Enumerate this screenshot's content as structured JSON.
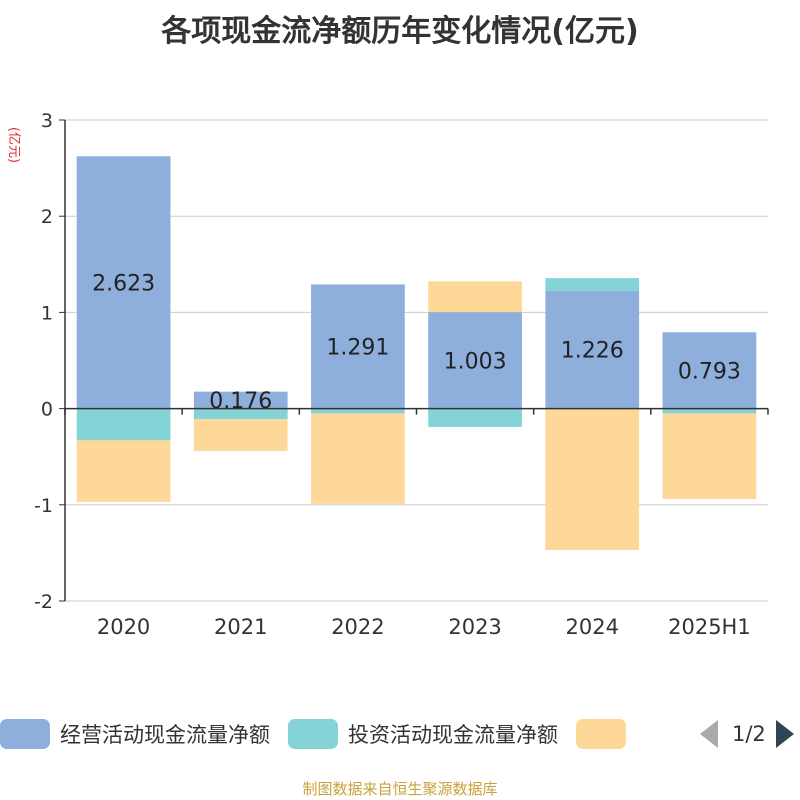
{
  "title": "各项现金流净额历年变化情况(亿元)",
  "footer": "制图数据来自恒生聚源数据库",
  "pager": {
    "text": "1/2"
  },
  "colors": {
    "operating": "#8eaedc",
    "investing": "#84d3d6",
    "financing": "#fdd898",
    "axis": "#333333",
    "grid": "#cccccc",
    "yunit": "#e03030"
  },
  "chart_data": {
    "type": "bar",
    "stacked": true,
    "categories": [
      "2020",
      "2021",
      "2022",
      "2023",
      "2024",
      "2025H1"
    ],
    "ylabel": "(亿元)",
    "ylim": [
      -2,
      3
    ],
    "yticks": [
      -2,
      -1,
      0,
      1,
      2,
      3
    ],
    "grid": true,
    "legend_position": "bottom",
    "series": [
      {
        "name": "经营活动现金流量净额",
        "key": "operating",
        "values": [
          2.623,
          0.176,
          1.291,
          1.003,
          1.226,
          0.793
        ],
        "labels": [
          "2.623",
          "0.176",
          "1.291",
          "1.003",
          "1.226",
          "0.793"
        ]
      },
      {
        "name": "投资活动现金流量净额",
        "key": "investing",
        "values": [
          -0.33,
          -0.11,
          -0.05,
          -0.19,
          0.13,
          -0.05
        ]
      },
      {
        "key": "financing",
        "values": [
          -0.64,
          -0.33,
          -0.94,
          0.32,
          -1.47,
          -0.89
        ]
      }
    ]
  }
}
